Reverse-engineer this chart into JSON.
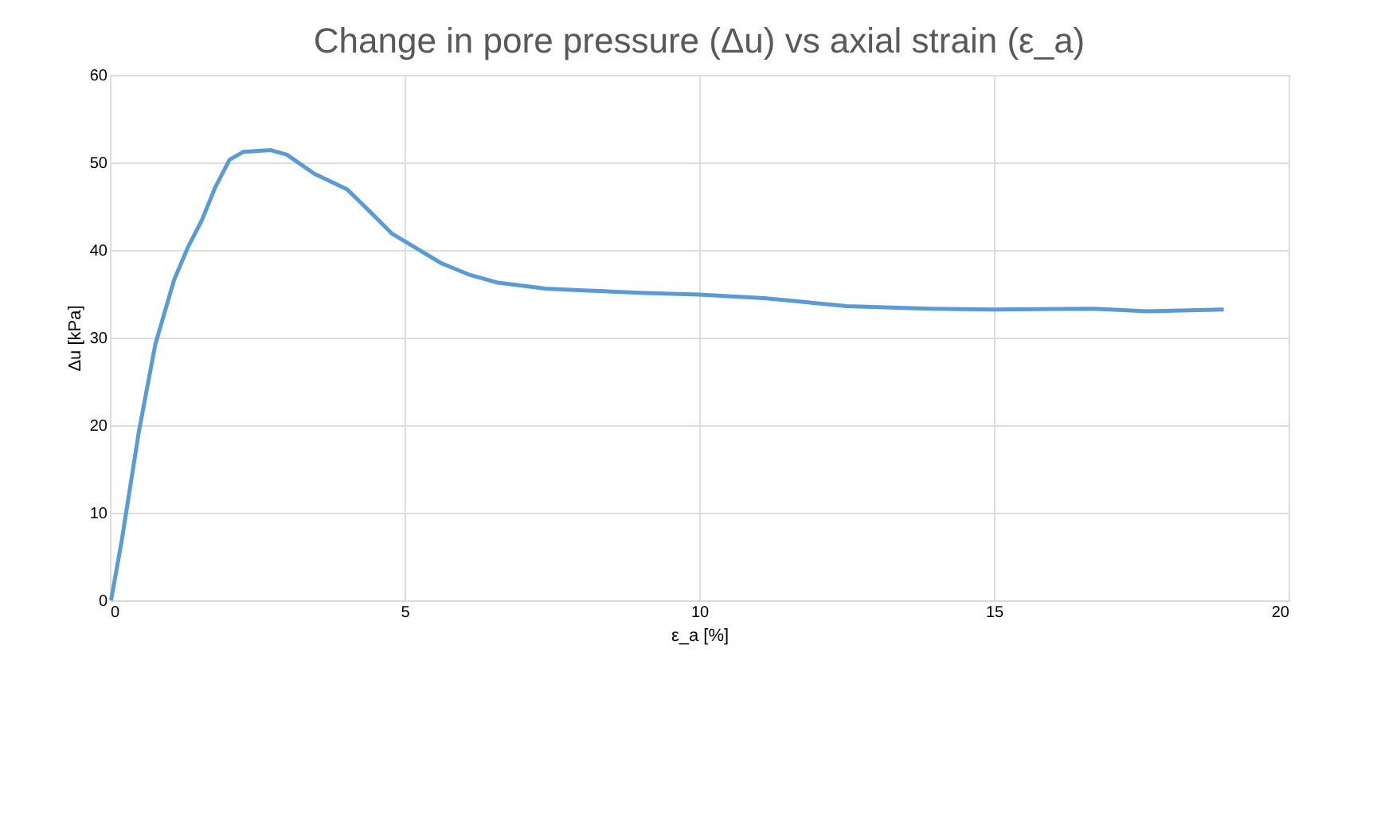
{
  "chart_data": {
    "type": "line",
    "title": "Change in pore pressure (Δu) vs axial strain (ε_a)",
    "xlabel": "ε_a [%]",
    "ylabel": "Δu [kPa]",
    "x": [
      0.02,
      0.2,
      0.49,
      0.77,
      1.09,
      1.33,
      1.56,
      1.79,
      2.03,
      2.26,
      2.73,
      3.0,
      3.47,
      4.03,
      4.41,
      4.78,
      5.15,
      5.62,
      6.09,
      6.56,
      7.39,
      7.96,
      9.08,
      10.0,
      11.1,
      12.5,
      13.9,
      15.0,
      16.7,
      17.6,
      18.9
    ],
    "series": [
      {
        "color": "#5b9bd5",
        "values": [
          0,
          6.8,
          19.2,
          29.2,
          36.6,
          40.4,
          43.4,
          47.2,
          50.3,
          51.2,
          51.4,
          50.9,
          48.7,
          46.9,
          44.4,
          41.9,
          40.4,
          38.5,
          37.2,
          36.3,
          35.6,
          35.4,
          35.1,
          34.9,
          34.5,
          33.6,
          33.3,
          33.2,
          33.3,
          33.0,
          33.2
        ]
      }
    ],
    "xlim": [
      0,
      20
    ],
    "xticks": [
      0,
      5,
      10,
      15,
      20
    ],
    "ylim": [
      0,
      60
    ],
    "yticks": [
      0,
      10,
      20,
      30,
      40,
      50,
      60
    ],
    "grid": true,
    "marker": "none",
    "line_style": "solid"
  }
}
